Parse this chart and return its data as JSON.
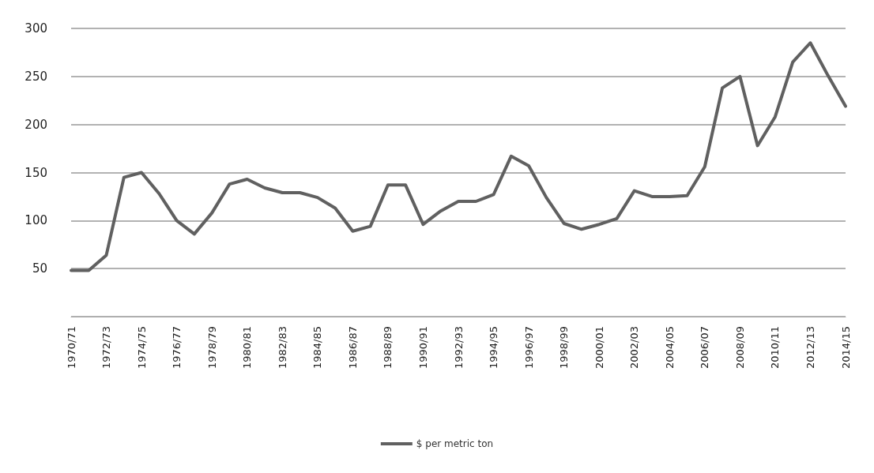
{
  "chart_data": {
    "type": "line",
    "categories": [
      "1970/71",
      null,
      "1972/73",
      null,
      "1974/75",
      null,
      "1976/77",
      null,
      "1978/79",
      null,
      "1980/81",
      null,
      "1982/83",
      null,
      "1984/85",
      null,
      "1986/87",
      null,
      "1988/89",
      null,
      "1990/91",
      null,
      "1992/93",
      null,
      "1994/95",
      null,
      "1996/97",
      null,
      "1998/99",
      null,
      "2000/01",
      null,
      "2002/03",
      null,
      "2004/05",
      null,
      "2006/07",
      null,
      "2008/09",
      null,
      "2010/11",
      null,
      "2012/13",
      null,
      "2014/15"
    ],
    "series": [
      {
        "name": "$ per metric ton",
        "color": "#606060",
        "values": [
          48,
          48,
          64,
          145,
          150,
          128,
          100,
          86,
          108,
          138,
          143,
          134,
          129,
          129,
          124,
          113,
          89,
          94,
          137,
          137,
          96,
          110,
          120,
          120,
          127,
          167,
          157,
          124,
          97,
          91,
          96,
          102,
          131,
          125,
          125,
          126,
          156,
          238,
          250,
          178,
          208,
          265,
          285,
          251,
          219
        ]
      }
    ],
    "ylim": [
      0,
      300
    ],
    "yticks": [
      {
        "value": 0,
        "label": null
      },
      50,
      100,
      150,
      200,
      250,
      300
    ],
    "grid": "y",
    "legend": "bottom",
    "marker": "none",
    "line_style": "solid"
  }
}
